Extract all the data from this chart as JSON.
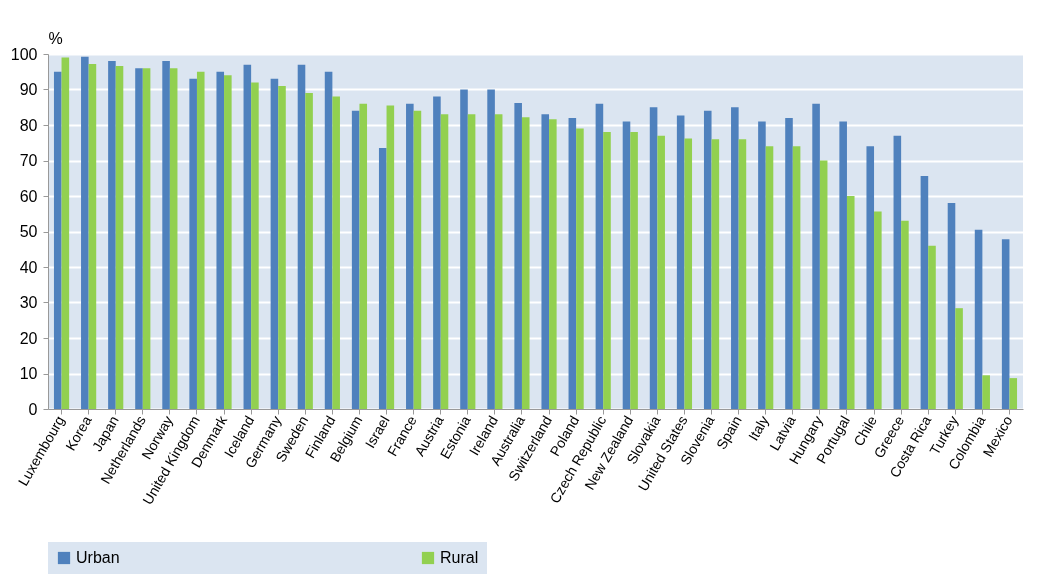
{
  "chart_data": {
    "type": "bar",
    "ylabel": "%",
    "categories": [
      "Luxembourg",
      "Korea",
      "Japan",
      "Netherlands",
      "Norway",
      "United Kingdom",
      "Denmark",
      "Iceland",
      "Germany",
      "Sweden",
      "Finland",
      "Belgium",
      "Israel",
      "France",
      "Austria",
      "Estonia",
      "Ireland",
      "Australia",
      "Switzerland",
      "Poland",
      "Czech Republic",
      "New Zealand",
      "Slovakia",
      "United States",
      "Slovenia",
      "Spain",
      "Italy",
      "Latvia",
      "Hungary",
      "Portugal",
      "Chile",
      "Greece",
      "Costa Rica",
      "Turkey",
      "Colombia",
      "Mexico"
    ],
    "series": [
      {
        "name": "Urban",
        "color": "#4f81bd",
        "values": [
          95,
          99.2,
          98,
          96,
          98,
          93,
          95,
          97,
          93,
          97,
          95,
          84,
          73.5,
          86,
          88,
          90,
          90,
          86.2,
          83,
          82,
          86,
          81,
          85,
          82.7,
          84,
          85,
          81,
          82,
          86,
          81,
          74,
          77,
          65.6,
          58,
          50.5,
          47.8
        ]
      },
      {
        "name": "Rural",
        "color": "#92d050",
        "values": [
          99,
          97.2,
          96.6,
          96,
          96,
          95,
          94,
          92,
          91,
          89,
          88,
          86,
          85.5,
          84,
          83,
          83,
          83,
          82.2,
          81.6,
          79,
          78,
          78,
          77,
          76.2,
          76,
          76,
          74,
          74,
          70,
          60,
          55.6,
          53,
          46,
          28.4,
          9.5,
          8.7
        ]
      }
    ],
    "ylim": [
      0,
      100
    ],
    "yticks": [
      0,
      10,
      20,
      30,
      40,
      50,
      60,
      70,
      80,
      90,
      100
    ],
    "grid": "y",
    "legend": "bottom"
  }
}
